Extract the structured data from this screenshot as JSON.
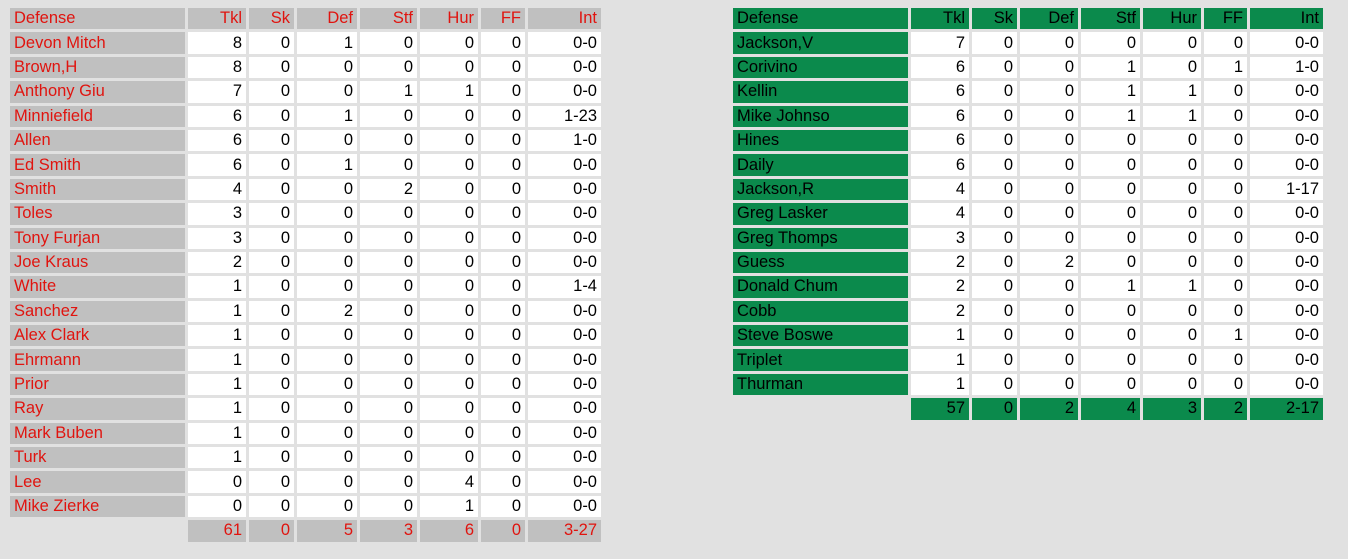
{
  "colors": {
    "home_accent": "#e0140f",
    "home_header_bg": "#c0c0c0",
    "away_header_bg": "#0b8a4c",
    "page_bg": "#e1e1e1"
  },
  "home": {
    "headers": [
      "Defense",
      "Tkl",
      "Sk",
      "Def",
      "Stf",
      "Hur",
      "FF",
      "Int"
    ],
    "rows": [
      [
        "Devon Mitch",
        "8",
        "0",
        "1",
        "0",
        "0",
        "0",
        "0-0"
      ],
      [
        "Brown,H",
        "8",
        "0",
        "0",
        "0",
        "0",
        "0",
        "0-0"
      ],
      [
        "Anthony Giu",
        "7",
        "0",
        "0",
        "1",
        "1",
        "0",
        "0-0"
      ],
      [
        "Minniefield",
        "6",
        "0",
        "1",
        "0",
        "0",
        "0",
        "1-23"
      ],
      [
        "Allen",
        "6",
        "0",
        "0",
        "0",
        "0",
        "0",
        "1-0"
      ],
      [
        "Ed Smith",
        "6",
        "0",
        "1",
        "0",
        "0",
        "0",
        "0-0"
      ],
      [
        "Smith",
        "4",
        "0",
        "0",
        "2",
        "0",
        "0",
        "0-0"
      ],
      [
        "Toles",
        "3",
        "0",
        "0",
        "0",
        "0",
        "0",
        "0-0"
      ],
      [
        "Tony Furjan",
        "3",
        "0",
        "0",
        "0",
        "0",
        "0",
        "0-0"
      ],
      [
        "Joe Kraus",
        "2",
        "0",
        "0",
        "0",
        "0",
        "0",
        "0-0"
      ],
      [
        "White",
        "1",
        "0",
        "0",
        "0",
        "0",
        "0",
        "1-4"
      ],
      [
        "Sanchez",
        "1",
        "0",
        "2",
        "0",
        "0",
        "0",
        "0-0"
      ],
      [
        "Alex Clark",
        "1",
        "0",
        "0",
        "0",
        "0",
        "0",
        "0-0"
      ],
      [
        "Ehrmann",
        "1",
        "0",
        "0",
        "0",
        "0",
        "0",
        "0-0"
      ],
      [
        "Prior",
        "1",
        "0",
        "0",
        "0",
        "0",
        "0",
        "0-0"
      ],
      [
        "Ray",
        "1",
        "0",
        "0",
        "0",
        "0",
        "0",
        "0-0"
      ],
      [
        "Mark Buben",
        "1",
        "0",
        "0",
        "0",
        "0",
        "0",
        "0-0"
      ],
      [
        "Turk",
        "1",
        "0",
        "0",
        "0",
        "0",
        "0",
        "0-0"
      ],
      [
        "Lee",
        "0",
        "0",
        "0",
        "0",
        "4",
        "0",
        "0-0"
      ],
      [
        "Mike Zierke",
        "0",
        "0",
        "0",
        "0",
        "1",
        "0",
        "0-0"
      ]
    ],
    "totals": [
      "61",
      "0",
      "5",
      "3",
      "6",
      "0",
      "3-27"
    ]
  },
  "away": {
    "headers": [
      "Defense",
      "Tkl",
      "Sk",
      "Def",
      "Stf",
      "Hur",
      "FF",
      "Int"
    ],
    "rows": [
      [
        "Jackson,V",
        "7",
        "0",
        "0",
        "0",
        "0",
        "0",
        "0-0"
      ],
      [
        "Corivino",
        "6",
        "0",
        "0",
        "1",
        "0",
        "1",
        "1-0"
      ],
      [
        "Kellin",
        "6",
        "0",
        "0",
        "1",
        "1",
        "0",
        "0-0"
      ],
      [
        "Mike Johnso",
        "6",
        "0",
        "0",
        "1",
        "1",
        "0",
        "0-0"
      ],
      [
        "Hines",
        "6",
        "0",
        "0",
        "0",
        "0",
        "0",
        "0-0"
      ],
      [
        "Daily",
        "6",
        "0",
        "0",
        "0",
        "0",
        "0",
        "0-0"
      ],
      [
        "Jackson,R",
        "4",
        "0",
        "0",
        "0",
        "0",
        "0",
        "1-17"
      ],
      [
        "Greg Lasker",
        "4",
        "0",
        "0",
        "0",
        "0",
        "0",
        "0-0"
      ],
      [
        "Greg Thomps",
        "3",
        "0",
        "0",
        "0",
        "0",
        "0",
        "0-0"
      ],
      [
        "Guess",
        "2",
        "0",
        "2",
        "0",
        "0",
        "0",
        "0-0"
      ],
      [
        "Donald Chum",
        "2",
        "0",
        "0",
        "1",
        "1",
        "0",
        "0-0"
      ],
      [
        "Cobb",
        "2",
        "0",
        "0",
        "0",
        "0",
        "0",
        "0-0"
      ],
      [
        "Steve Boswe",
        "1",
        "0",
        "0",
        "0",
        "0",
        "1",
        "0-0"
      ],
      [
        "Triplet",
        "1",
        "0",
        "0",
        "0",
        "0",
        "0",
        "0-0"
      ],
      [
        "Thurman",
        "1",
        "0",
        "0",
        "0",
        "0",
        "0",
        "0-0"
      ]
    ],
    "totals": [
      "57",
      "0",
      "2",
      "4",
      "3",
      "2",
      "2-17"
    ]
  }
}
